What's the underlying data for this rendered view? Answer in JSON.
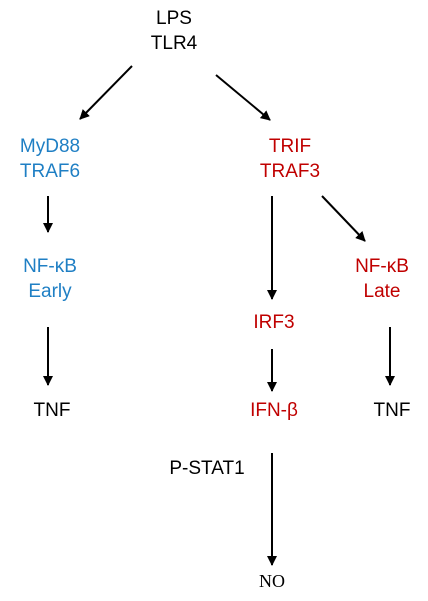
{
  "colors": {
    "black": "#000000",
    "blue": "#1f7fc4",
    "red": "#c00000"
  },
  "nodes": {
    "lps_tlr4": {
      "line1": "LPS",
      "line2": "TLR4"
    },
    "myd88_traf6": {
      "line1": "MyD88",
      "line2": "TRAF6"
    },
    "trif_traf3": {
      "line1": "TRIF",
      "line2": "TRAF3"
    },
    "nfkb_early": {
      "line1": "NF-κB",
      "line2": "Early"
    },
    "nfkb_late": {
      "line1": "NF-κB",
      "line2": "Late"
    },
    "irf3": {
      "label": "IRF3"
    },
    "tnf_early": {
      "label": "TNF"
    },
    "ifn_beta": {
      "label": "IFN-β"
    },
    "tnf_late": {
      "label": "TNF"
    },
    "p_stat1": {
      "label": "P-STAT1"
    },
    "no": {
      "label": "NO"
    }
  }
}
